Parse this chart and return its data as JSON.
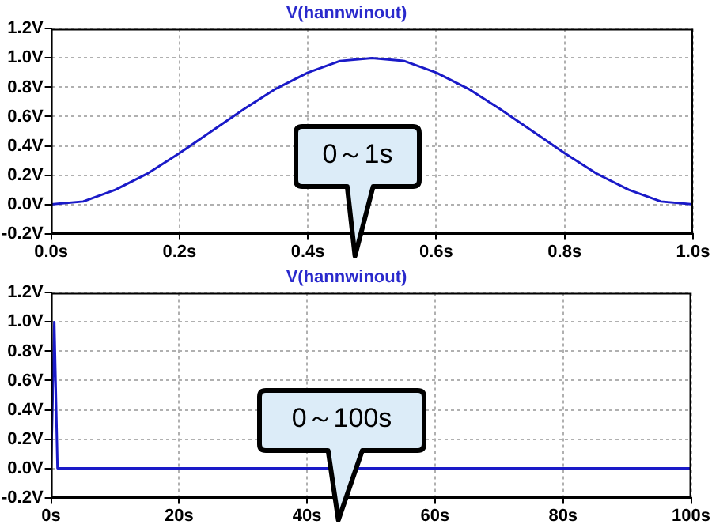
{
  "chart_data": [
    {
      "type": "line",
      "title": "V(hannwinout)",
      "x": [
        0,
        0.05,
        0.1,
        0.15,
        0.2,
        0.25,
        0.3,
        0.35,
        0.4,
        0.45,
        0.5,
        0.55,
        0.6,
        0.65,
        0.7,
        0.75,
        0.8,
        0.85,
        0.9,
        0.95,
        1.0
      ],
      "series": [
        {
          "color": "#1a1ac8",
          "values": [
            0,
            0.02,
            0.1,
            0.21,
            0.35,
            0.5,
            0.65,
            0.79,
            0.9,
            0.98,
            1.0,
            0.98,
            0.9,
            0.79,
            0.65,
            0.5,
            0.35,
            0.21,
            0.1,
            0.02,
            0
          ]
        }
      ],
      "xlim": [
        0,
        1
      ],
      "xticks": [
        {
          "value": 0,
          "label": "0.0s"
        },
        {
          "value": 0.2,
          "label": "0.2s"
        },
        {
          "value": 0.4,
          "label": "0.4s"
        },
        {
          "value": 0.6,
          "label": "0.6s"
        },
        {
          "value": 0.8,
          "label": "0.8s"
        },
        {
          "value": 1,
          "label": "1.0s"
        }
      ],
      "ylim": [
        -0.2,
        1.2
      ],
      "yticks": [
        {
          "value": -0.2,
          "label": "-0.2V"
        },
        {
          "value": 0,
          "label": "0.0V"
        },
        {
          "value": 0.2,
          "label": "0.2V"
        },
        {
          "value": 0.4,
          "label": "0.4V"
        },
        {
          "value": 0.6,
          "label": "0.6V"
        },
        {
          "value": 0.8,
          "label": "0.8V"
        },
        {
          "value": 1.0,
          "label": "1.0V"
        },
        {
          "value": 1.2,
          "label": "1.2V"
        }
      ],
      "grid": true,
      "legend": false,
      "marker": "none",
      "line_style": "solid",
      "annotations": [
        "0～1s"
      ]
    },
    {
      "type": "line",
      "title": "V(hannwinout)",
      "x": [
        0,
        0.5,
        1,
        100
      ],
      "series": [
        {
          "color": "#1a1ac8",
          "values": [
            0,
            1.0,
            0,
            0
          ]
        }
      ],
      "xlim": [
        0,
        100
      ],
      "xticks": [
        {
          "value": 0,
          "label": "0s"
        },
        {
          "value": 20,
          "label": "20s"
        },
        {
          "value": 40,
          "label": "40s"
        },
        {
          "value": 60,
          "label": "60s"
        },
        {
          "value": 80,
          "label": "80s"
        },
        {
          "value": 100,
          "label": "100s"
        }
      ],
      "ylim": [
        -0.2,
        1.2
      ],
      "yticks": [
        {
          "value": -0.2,
          "label": "-0.2V"
        },
        {
          "value": 0,
          "label": "0.0V"
        },
        {
          "value": 0.2,
          "label": "0.2V"
        },
        {
          "value": 0.4,
          "label": "0.4V"
        },
        {
          "value": 0.6,
          "label": "0.6V"
        },
        {
          "value": 0.8,
          "label": "0.8V"
        },
        {
          "value": 1.0,
          "label": "1.0V"
        },
        {
          "value": 1.2,
          "label": "1.2V"
        }
      ],
      "grid": true,
      "legend": false,
      "marker": "none",
      "line_style": "solid",
      "annotations": [
        "0～100s"
      ]
    }
  ]
}
